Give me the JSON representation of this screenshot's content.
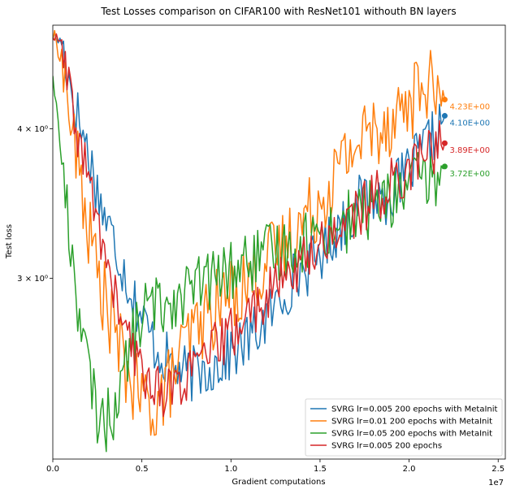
{
  "chart_data": {
    "type": "line",
    "title": "Test Losses comparison on CIFAR100 with ResNet101 withouth BN layers",
    "xlabel": "Gradient computations",
    "ylabel": "Test loss",
    "x_offset_label": "1e7",
    "x_scale": "linear",
    "y_scale": "log",
    "xlim": [
      0,
      25400000
    ],
    "ylim": [
      2.12,
      4.88
    ],
    "x_ticks": [
      {
        "value": 0,
        "label": "0.0"
      },
      {
        "value": 5000000,
        "label": "0.5"
      },
      {
        "value": 10000000,
        "label": "1.0"
      },
      {
        "value": 15000000,
        "label": "1.5"
      },
      {
        "value": 20000000,
        "label": "2.0"
      },
      {
        "value": 25000000,
        "label": "2.5"
      }
    ],
    "y_ticks": [
      {
        "value": 3,
        "label": "3 × 10⁰"
      },
      {
        "value": 4,
        "label": "4 × 10⁰"
      }
    ],
    "grid": false,
    "legend_position": "lower-right",
    "series": [
      {
        "name": "SVRG lr=0.005 200 epochs with MetaInit",
        "color": "#1f77b4",
        "end_label": "4.10E+00",
        "end_value": 4.1,
        "points": [
          [
            0,
            4.78
          ],
          [
            500000,
            4.72
          ],
          [
            1000000,
            4.35
          ],
          [
            1500000,
            4.05
          ],
          [
            2000000,
            3.82
          ],
          [
            2500000,
            3.55
          ],
          [
            3000000,
            3.35
          ],
          [
            3500000,
            3.2
          ],
          [
            4000000,
            3.05
          ],
          [
            4500000,
            2.9
          ],
          [
            5000000,
            2.78
          ],
          [
            5500000,
            2.68
          ],
          [
            6000000,
            2.6
          ],
          [
            6500000,
            2.56
          ],
          [
            7000000,
            2.52
          ],
          [
            7500000,
            2.5
          ],
          [
            8000000,
            2.5
          ],
          [
            8500000,
            2.52
          ],
          [
            9000000,
            2.54
          ],
          [
            9500000,
            2.56
          ],
          [
            10000000,
            2.6
          ],
          [
            10500000,
            2.63
          ],
          [
            11000000,
            2.67
          ],
          [
            11500000,
            2.72
          ],
          [
            12000000,
            2.78
          ],
          [
            12500000,
            2.84
          ],
          [
            13000000,
            2.92
          ],
          [
            13500000,
            3.0
          ],
          [
            14000000,
            3.05
          ],
          [
            14500000,
            3.08
          ],
          [
            15000000,
            3.15
          ],
          [
            15500000,
            3.22
          ],
          [
            16000000,
            3.3
          ],
          [
            16500000,
            3.38
          ],
          [
            17000000,
            3.45
          ],
          [
            17500000,
            3.5
          ],
          [
            18000000,
            3.52
          ],
          [
            18500000,
            3.5
          ],
          [
            19000000,
            3.55
          ],
          [
            19500000,
            3.6
          ],
          [
            20000000,
            3.7
          ],
          [
            20500000,
            3.78
          ],
          [
            21000000,
            3.88
          ],
          [
            21500000,
            3.95
          ],
          [
            22000000,
            4.1
          ]
        ]
      },
      {
        "name": "SVRG lr=0.01 200 epochs with MetaInit",
        "color": "#ff7f0e",
        "end_label": "4.23E+00",
        "end_value": 4.23,
        "points": [
          [
            0,
            4.78
          ],
          [
            500000,
            4.6
          ],
          [
            1000000,
            4.05
          ],
          [
            1500000,
            3.65
          ],
          [
            2000000,
            3.3
          ],
          [
            2500000,
            3.05
          ],
          [
            3000000,
            2.85
          ],
          [
            3500000,
            2.7
          ],
          [
            4000000,
            2.55
          ],
          [
            4500000,
            2.45
          ],
          [
            5000000,
            2.38
          ],
          [
            5500000,
            2.35
          ],
          [
            6000000,
            2.38
          ],
          [
            6500000,
            2.45
          ],
          [
            7000000,
            2.55
          ],
          [
            7500000,
            2.65
          ],
          [
            8000000,
            2.72
          ],
          [
            8500000,
            2.78
          ],
          [
            9000000,
            2.82
          ],
          [
            9500000,
            2.88
          ],
          [
            10000000,
            2.92
          ],
          [
            10500000,
            2.96
          ],
          [
            11000000,
            3.0
          ],
          [
            11500000,
            3.05
          ],
          [
            12000000,
            3.1
          ],
          [
            12500000,
            3.15
          ],
          [
            13000000,
            3.2
          ],
          [
            13500000,
            3.28
          ],
          [
            14000000,
            3.35
          ],
          [
            14500000,
            3.42
          ],
          [
            15000000,
            3.5
          ],
          [
            15500000,
            3.6
          ],
          [
            16000000,
            3.7
          ],
          [
            16500000,
            3.8
          ],
          [
            17000000,
            3.88
          ],
          [
            17500000,
            3.95
          ],
          [
            18000000,
            4.0
          ],
          [
            18500000,
            4.05
          ],
          [
            19000000,
            4.1
          ],
          [
            19500000,
            4.15
          ],
          [
            20000000,
            4.2
          ],
          [
            20500000,
            4.3
          ],
          [
            21000000,
            4.4
          ],
          [
            21500000,
            4.25
          ],
          [
            22000000,
            4.23
          ]
        ]
      },
      {
        "name": "SVRG lr=0.05 200 epochs with MetaInit",
        "color": "#2ca02c",
        "end_label": "3.72E+00",
        "end_value": 3.72,
        "points": [
          [
            0,
            4.45
          ],
          [
            500000,
            3.75
          ],
          [
            1000000,
            3.2
          ],
          [
            1500000,
            2.8
          ],
          [
            2000000,
            2.5
          ],
          [
            2500000,
            2.32
          ],
          [
            3000000,
            2.28
          ],
          [
            3500000,
            2.35
          ],
          [
            4000000,
            2.5
          ],
          [
            4500000,
            2.68
          ],
          [
            5000000,
            2.8
          ],
          [
            5500000,
            2.85
          ],
          [
            6000000,
            2.85
          ],
          [
            6500000,
            2.88
          ],
          [
            7000000,
            2.9
          ],
          [
            7500000,
            2.93
          ],
          [
            8000000,
            2.95
          ],
          [
            8500000,
            2.98
          ],
          [
            9000000,
            3.0
          ],
          [
            9500000,
            3.02
          ],
          [
            10000000,
            3.05
          ],
          [
            10500000,
            3.07
          ],
          [
            11000000,
            3.1
          ],
          [
            11500000,
            3.12
          ],
          [
            12000000,
            3.14
          ],
          [
            12500000,
            3.16
          ],
          [
            13000000,
            3.18
          ],
          [
            13500000,
            3.2
          ],
          [
            14000000,
            3.22
          ],
          [
            14500000,
            3.24
          ],
          [
            15000000,
            3.27
          ],
          [
            15500000,
            3.3
          ],
          [
            16000000,
            3.32
          ],
          [
            16500000,
            3.35
          ],
          [
            17000000,
            3.38
          ],
          [
            17500000,
            3.42
          ],
          [
            18000000,
            3.45
          ],
          [
            18500000,
            3.48
          ],
          [
            19000000,
            3.5
          ],
          [
            19500000,
            3.55
          ],
          [
            20000000,
            3.6
          ],
          [
            20500000,
            3.62
          ],
          [
            21000000,
            3.6
          ],
          [
            21500000,
            3.65
          ],
          [
            22000000,
            3.72
          ]
        ]
      },
      {
        "name": "SVRG lr=0.005 200 epochs",
        "color": "#d62728",
        "end_label": "3.89E+00",
        "end_value": 3.89,
        "points": [
          [
            0,
            4.78
          ],
          [
            500000,
            4.7
          ],
          [
            1000000,
            4.2
          ],
          [
            1500000,
            3.9
          ],
          [
            2000000,
            3.62
          ],
          [
            2500000,
            3.35
          ],
          [
            3000000,
            3.1
          ],
          [
            3500000,
            2.9
          ],
          [
            4000000,
            2.72
          ],
          [
            4500000,
            2.6
          ],
          [
            5000000,
            2.52
          ],
          [
            5500000,
            2.46
          ],
          [
            6000000,
            2.42
          ],
          [
            6500000,
            2.42
          ],
          [
            7000000,
            2.45
          ],
          [
            7500000,
            2.48
          ],
          [
            8000000,
            2.52
          ],
          [
            8500000,
            2.57
          ],
          [
            9000000,
            2.62
          ],
          [
            9500000,
            2.66
          ],
          [
            10000000,
            2.7
          ],
          [
            10500000,
            2.75
          ],
          [
            11000000,
            2.8
          ],
          [
            11500000,
            2.85
          ],
          [
            12000000,
            2.9
          ],
          [
            12500000,
            2.95
          ],
          [
            13000000,
            3.0
          ],
          [
            13500000,
            3.05
          ],
          [
            14000000,
            3.1
          ],
          [
            14500000,
            3.15
          ],
          [
            15000000,
            3.2
          ],
          [
            15500000,
            3.25
          ],
          [
            16000000,
            3.3
          ],
          [
            16500000,
            3.35
          ],
          [
            17000000,
            3.4
          ],
          [
            17500000,
            3.45
          ],
          [
            18000000,
            3.5
          ],
          [
            18500000,
            3.55
          ],
          [
            19000000,
            3.6
          ],
          [
            19500000,
            3.65
          ],
          [
            20000000,
            3.72
          ],
          [
            20500000,
            3.78
          ],
          [
            21000000,
            3.83
          ],
          [
            21500000,
            3.86
          ],
          [
            22000000,
            3.89
          ]
        ]
      }
    ]
  }
}
